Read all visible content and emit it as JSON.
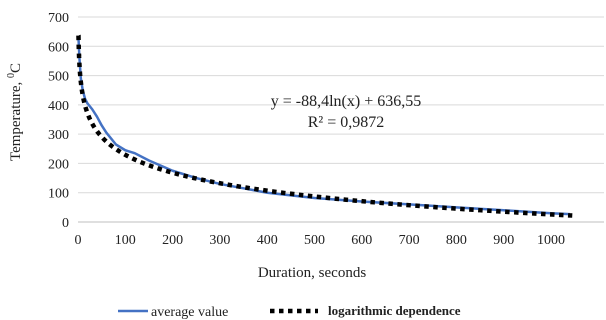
{
  "chart_data": {
    "type": "line",
    "xlabel": "Duration, seconds",
    "ylabel_main": "Temperature, ",
    "ylabel_sup": "0",
    "ylabel_unit": "C",
    "xlim": [
      0,
      1050
    ],
    "ylim": [
      0,
      700
    ],
    "x_ticks": [
      0,
      100,
      200,
      300,
      400,
      500,
      600,
      700,
      800,
      900,
      1000
    ],
    "y_ticks": [
      0,
      100,
      200,
      300,
      400,
      500,
      600,
      700
    ],
    "grid": "horizontal",
    "legend_position": "bottom",
    "annotations": [
      "y = -88,4ln(x) + 636,55",
      "R² = 0,9872"
    ],
    "series": [
      {
        "name": "average value",
        "color": "#4472C4",
        "style": "solid",
        "x": [
          1,
          3,
          6,
          10,
          15,
          20,
          30,
          40,
          50,
          60,
          80,
          100,
          120,
          150,
          200,
          250,
          300,
          350,
          400,
          500,
          600,
          700,
          800,
          900,
          1000,
          1040
        ],
        "y": [
          630,
          560,
          490,
          450,
          420,
          405,
          385,
          360,
          330,
          305,
          265,
          245,
          235,
          210,
          175,
          150,
          130,
          115,
          100,
          82,
          70,
          60,
          50,
          40,
          30,
          27
        ]
      },
      {
        "name": "logarithmic dependence",
        "color": "#000000",
        "style": "dotted",
        "function": {
          "a": -88.4,
          "b": 636.55
        },
        "x_range": [
          1,
          1045
        ]
      }
    ]
  }
}
